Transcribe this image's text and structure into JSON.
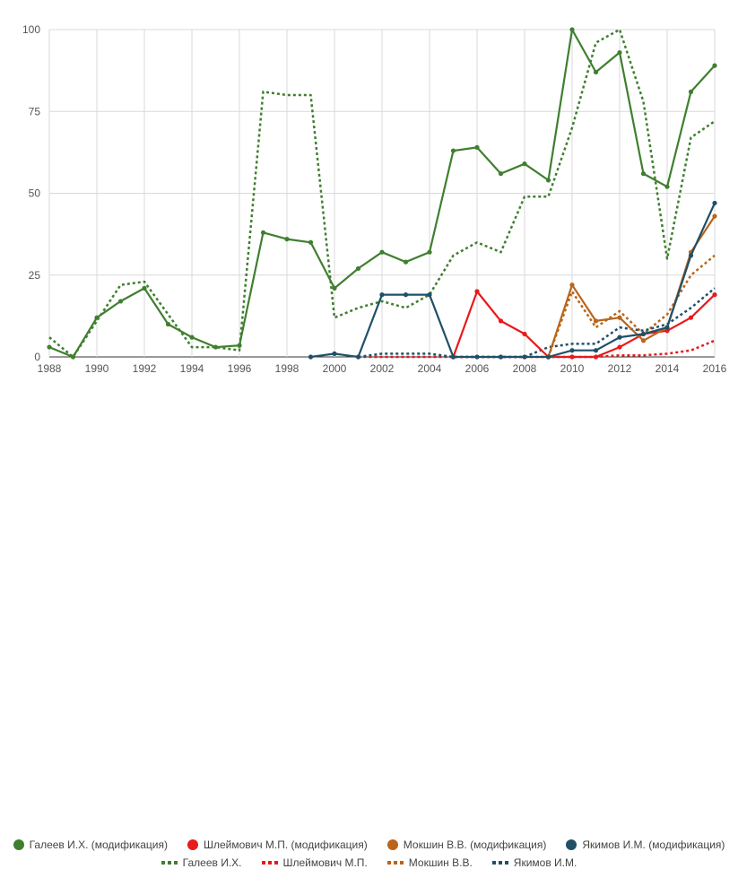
{
  "chart_data": {
    "type": "line",
    "x": [
      1988,
      1989,
      1990,
      1991,
      1992,
      1993,
      1994,
      1995,
      1996,
      1997,
      1998,
      1999,
      2000,
      2001,
      2002,
      2003,
      2004,
      2005,
      2006,
      2007,
      2008,
      2009,
      2010,
      2011,
      2012,
      2013,
      2014,
      2015,
      2016
    ],
    "xticks": [
      "1988",
      "1990",
      "1992",
      "1994",
      "1996",
      "1998",
      "2000",
      "2002",
      "2004",
      "2006",
      "2008",
      "2010",
      "2012",
      "2014",
      "2016"
    ],
    "yticks": [
      "0",
      "25",
      "50",
      "75",
      "100"
    ],
    "ylim": [
      0,
      100
    ],
    "grid": true,
    "legend_position": "bottom",
    "series": [
      {
        "name": "Галеев И.Х. (модификация)",
        "color": "#3f7f2f",
        "style": "solid",
        "values": [
          3,
          0,
          12,
          17,
          21,
          10,
          6,
          3,
          3.5,
          38,
          36,
          35,
          21,
          27,
          32,
          29,
          32,
          63,
          64,
          56,
          59,
          54,
          100,
          87,
          93,
          56,
          52,
          81,
          89
        ]
      },
      {
        "name": "Шлеймович М.П. (модификация)",
        "color": "#e8191c",
        "style": "solid",
        "values": [
          null,
          null,
          null,
          null,
          null,
          null,
          null,
          null,
          null,
          null,
          null,
          null,
          null,
          null,
          null,
          null,
          null,
          0,
          20,
          11,
          7,
          0,
          0,
          0,
          3,
          7,
          8,
          12,
          19
        ]
      },
      {
        "name": "Мокшин В.В. (модификация)",
        "color": "#b9651b",
        "style": "solid",
        "values": [
          null,
          null,
          null,
          null,
          null,
          null,
          null,
          null,
          null,
          null,
          null,
          null,
          null,
          null,
          null,
          null,
          null,
          null,
          null,
          null,
          null,
          0,
          22,
          11,
          12,
          5,
          9,
          32,
          43
        ]
      },
      {
        "name": "Якимов И.М. (модификация)",
        "color": "#1f5068",
        "style": "solid",
        "values": [
          null,
          null,
          null,
          null,
          null,
          null,
          null,
          null,
          null,
          null,
          null,
          0,
          1,
          0,
          19,
          19,
          19,
          0,
          0,
          0,
          0,
          0,
          2,
          2,
          6,
          7,
          9,
          31,
          47
        ]
      },
      {
        "name": "Галеев И.Х.",
        "color": "#3f7f2f",
        "style": "dotted",
        "values": [
          6,
          0,
          11,
          22,
          23,
          13,
          3,
          3,
          2,
          81,
          80,
          80,
          12,
          15,
          17,
          15,
          19,
          31,
          35,
          32,
          49,
          49,
          70,
          96,
          100,
          78,
          30,
          67,
          72
        ]
      },
      {
        "name": "Шлеймович М.П.",
        "color": "#e8191c",
        "style": "dotted",
        "values": [
          null,
          null,
          null,
          null,
          null,
          null,
          null,
          null,
          null,
          null,
          null,
          null,
          null,
          0,
          0,
          0,
          0,
          0,
          0,
          0,
          0,
          0,
          0,
          0,
          0.5,
          0.5,
          1,
          2,
          5
        ]
      },
      {
        "name": "Мокшин В.В.",
        "color": "#b9651b",
        "style": "dotted",
        "values": [
          null,
          null,
          null,
          null,
          null,
          null,
          null,
          null,
          null,
          null,
          null,
          null,
          null,
          null,
          null,
          null,
          null,
          null,
          null,
          null,
          null,
          0,
          20,
          9,
          14,
          7,
          13,
          25,
          31
        ]
      },
      {
        "name": "Якимов И.М.",
        "color": "#1f5068",
        "style": "dotted",
        "values": [
          null,
          null,
          null,
          null,
          null,
          null,
          null,
          null,
          null,
          null,
          null,
          null,
          null,
          0,
          1,
          1,
          1,
          0,
          0,
          0,
          0,
          3,
          4,
          4,
          9,
          8,
          10,
          15,
          21
        ]
      }
    ]
  }
}
